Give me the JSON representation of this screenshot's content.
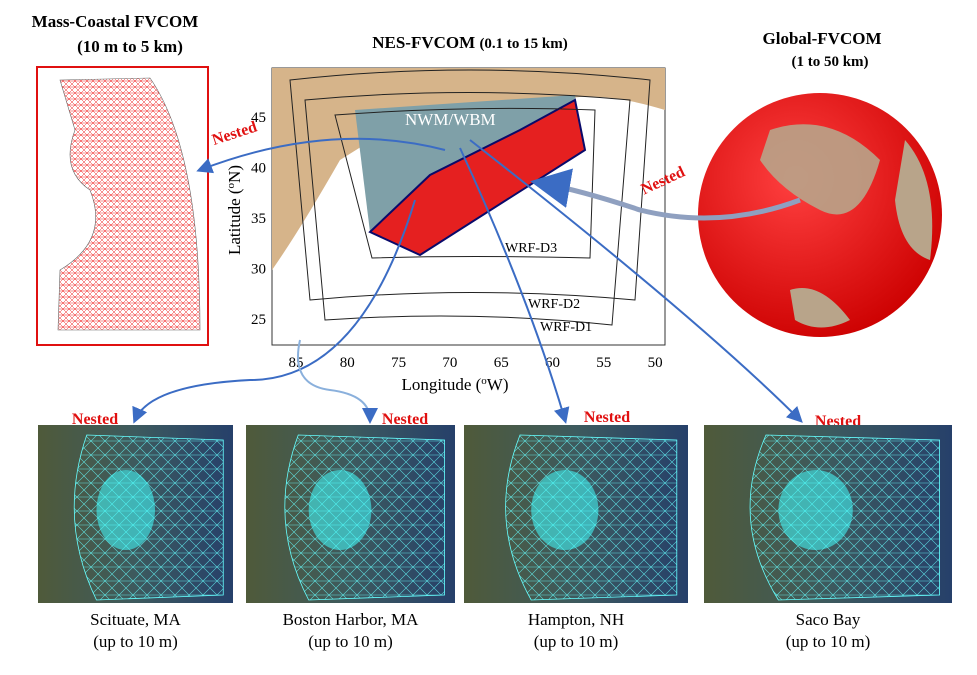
{
  "mass_coastal": {
    "title": "Mass-Coastal FVCOM",
    "subtitle": "(10 m to 5 km)"
  },
  "nes": {
    "title": "NES-FVCOM",
    "subtitle": "(0.1 to 15 km)",
    "region_label": "NWM/WBM",
    "domains": [
      "WRF-D3",
      "WRF-D2",
      "WRF-D1"
    ],
    "y_label": [
      "Latitude (",
      "o",
      "N)"
    ],
    "x_label": [
      "Longitude (",
      "o",
      "W)"
    ],
    "y_ticks": [
      45,
      40,
      35,
      30,
      25
    ],
    "x_ticks": [
      85,
      80,
      75,
      70,
      65,
      60,
      55,
      50
    ]
  },
  "global": {
    "title": "Global-FVCOM",
    "subtitle": "(1 to 50 km)"
  },
  "nested_labels": [
    "Nested",
    "Nested",
    "Nested",
    "Nested",
    "Nested",
    "Nested"
  ],
  "sites": [
    {
      "name": "Scituate, MA",
      "resolution": "(up to 10 m)"
    },
    {
      "name": "Boston Harbor, MA",
      "resolution": "(up to 10 m)"
    },
    {
      "name": "Hampton, NH",
      "resolution": "(up  to 10 m)"
    },
    {
      "name": "Saco Bay",
      "resolution": "(up  to 10 m)"
    }
  ]
}
